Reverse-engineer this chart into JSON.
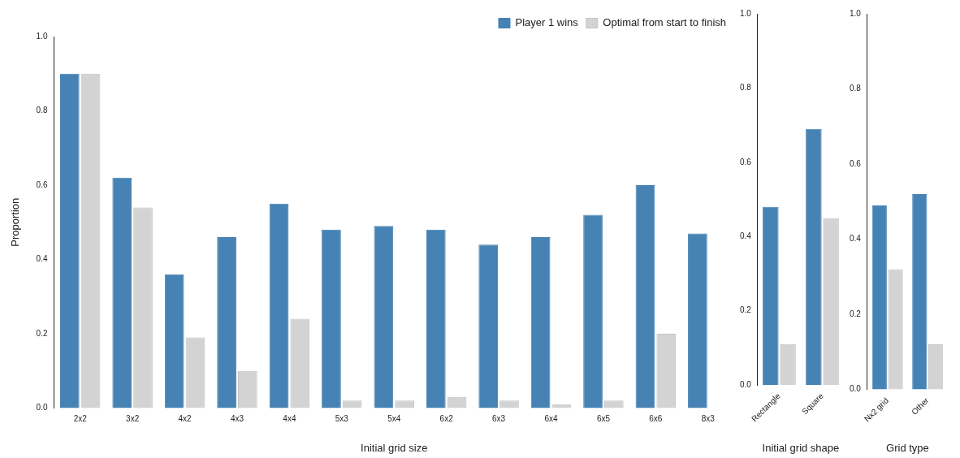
{
  "chart_data": [
    {
      "type": "bar",
      "xlabel": "Initial grid size",
      "ylabel": "Proportion",
      "categories": [
        "2x2",
        "3x2",
        "4x2",
        "4x3",
        "4x4",
        "5x3",
        "5x4",
        "6x2",
        "6x3",
        "6x4",
        "6x5",
        "6x6",
        "8x3"
      ],
      "series": [
        {
          "name": "Player 1 wins",
          "color": "#4682b4",
          "values": [
            0.9,
            0.62,
            0.36,
            0.46,
            0.55,
            0.48,
            0.49,
            0.48,
            0.44,
            0.46,
            0.52,
            0.6,
            0.47
          ]
        },
        {
          "name": "Optimal from start to finish",
          "color": "#d3d3d3",
          "values": [
            0.9,
            0.54,
            0.19,
            0.1,
            0.24,
            0.02,
            0.02,
            0.03,
            0.02,
            0.01,
            0.02,
            0.2,
            0.0
          ]
        }
      ],
      "ylim": [
        0,
        1
      ],
      "yticks": [
        {
          "value": 0,
          "label": "0.0"
        },
        {
          "value": 0.2,
          "label": "0.2"
        },
        {
          "value": 0.4,
          "label": "0.4"
        },
        {
          "value": 0.6,
          "label": "0.6"
        },
        {
          "value": 0.8,
          "label": "0.8"
        },
        {
          "value": 1,
          "label": "1.0"
        }
      ],
      "legend": "top right",
      "grid": false
    },
    {
      "type": "bar",
      "xlabel": "Initial grid shape",
      "categories": [
        "Rectangle",
        "Square"
      ],
      "series": [
        {
          "color": "#4682b4",
          "values": [
            0.48,
            0.69
          ]
        },
        {
          "color": "#d3d3d3",
          "values": [
            0.11,
            0.45
          ]
        }
      ],
      "ylim": [
        0,
        1
      ],
      "yticks": [
        {
          "value": 0,
          "label": "0.0"
        },
        {
          "value": 0.2,
          "label": "0.2"
        },
        {
          "value": 0.4,
          "label": "0.4"
        },
        {
          "value": 0.6,
          "label": "0.6"
        },
        {
          "value": 0.8,
          "label": "0.8"
        },
        {
          "value": 1,
          "label": "1.0"
        }
      ],
      "grid": false
    },
    {
      "type": "bar",
      "xlabel": "Grid type",
      "categories": [
        "Nx2 grid",
        "Other"
      ],
      "series": [
        {
          "color": "#4682b4",
          "values": [
            0.49,
            0.52
          ]
        },
        {
          "color": "#d3d3d3",
          "values": [
            0.32,
            0.12
          ]
        }
      ],
      "ylim": [
        0,
        1
      ],
      "yticks": [
        {
          "value": 0,
          "label": "0.0"
        },
        {
          "value": 0.2,
          "label": "0.2"
        },
        {
          "value": 0.4,
          "label": "0.4"
        },
        {
          "value": 0.6,
          "label": "0.6"
        },
        {
          "value": 0.8,
          "label": "0.8"
        },
        {
          "value": 1,
          "label": "1.0"
        }
      ],
      "grid": false
    }
  ]
}
